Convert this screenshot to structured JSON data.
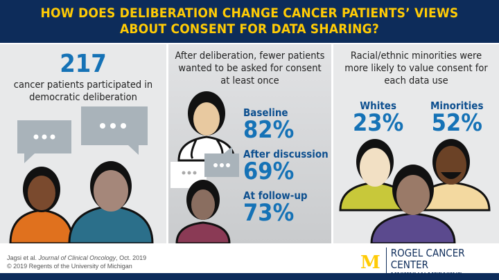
{
  "header": {
    "line1": "HOW DOES DELIBERATION CHANGE CANCER PATIENTS’ VIEWS",
    "line2": "ABOUT CONSENT FOR DATA SHARING?"
  },
  "panel1": {
    "number": "217",
    "text": "cancer patients participated in democratic deliberation"
  },
  "panel2": {
    "heading": "After deliberation, fewer patients wanted to be asked for consent at least once",
    "stats": [
      {
        "label": "Baseline",
        "value": "82%"
      },
      {
        "label": "After discussion",
        "value": "69%"
      },
      {
        "label": "At follow-up",
        "value": "73%"
      }
    ]
  },
  "panel3": {
    "heading": "Racial/ethnic minorities were more likely to value consent for each data use",
    "groups": [
      {
        "label": "Whites",
        "value": "23%"
      },
      {
        "label": "Minorities",
        "value": "52%"
      }
    ]
  },
  "footer": {
    "author": "Jagsi et al.",
    "journal": "Journal of Clinical Oncology",
    "date": ", Oct. 2019",
    "copyright": "© 2019 Regents of the University of Michigan",
    "logo_letter": "M",
    "org": "ROGEL CANCER CENTER",
    "sub": "MICHIGAN MEDICINE"
  },
  "colors": {
    "navy": "#0d2c5a",
    "maize": "#ffcb05",
    "blue": "#1572b6"
  }
}
